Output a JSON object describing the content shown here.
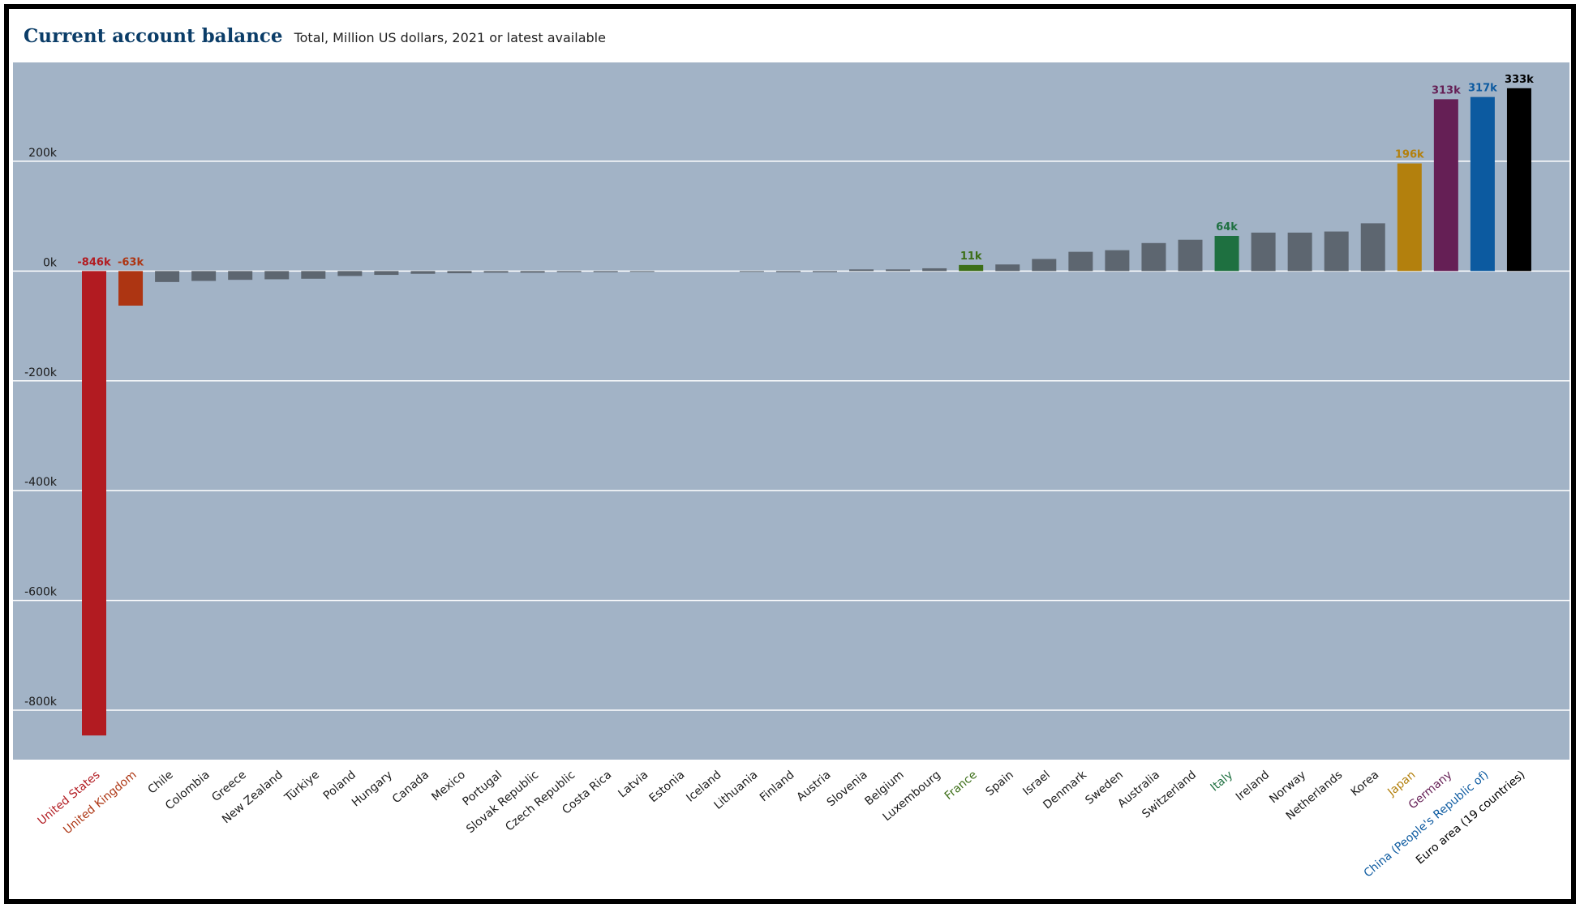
{
  "header": {
    "title": "Current account balance",
    "subtitle": "Total, Million US dollars, 2021 or latest available"
  },
  "chart_data": {
    "type": "bar",
    "title": "Current account balance",
    "subtitle": "Total, Million US dollars, 2021 or latest available",
    "xlabel": "",
    "ylabel": "",
    "ylim": [
      -890,
      380
    ],
    "yticks": [
      200,
      0,
      -200,
      -400,
      -600,
      -800
    ],
    "ytick_labels": [
      "200k",
      "0k",
      "-200k",
      "-400k",
      "-600k",
      "-800k"
    ],
    "grid": true,
    "default_color": "#5d6670",
    "background": "#a2b3c6",
    "categories": [
      "United States",
      "United Kingdom",
      "Chile",
      "Colombia",
      "Greece",
      "New Zealand",
      "Türkiye",
      "Poland",
      "Hungary",
      "Canada",
      "Mexico",
      "Portugal",
      "Slovak Republic",
      "Czech Republic",
      "Costa Rica",
      "Latvia",
      "Estonia",
      "Iceland",
      "Lithuania",
      "Finland",
      "Austria",
      "Slovenia",
      "Belgium",
      "Luxembourg",
      "France",
      "Spain",
      "Israel",
      "Denmark",
      "Sweden",
      "Australia",
      "Switzerland",
      "Italy",
      "Ireland",
      "Norway",
      "Netherlands",
      "Korea",
      "Japan",
      "Germany",
      "China (People's Republic of)",
      "Euro area (19 countries)"
    ],
    "values": [
      -846,
      -63,
      -20,
      -18,
      -16,
      -15,
      -14,
      -9,
      -7,
      -5,
      -4,
      -3,
      -3,
      -2,
      -2,
      -1,
      0,
      0,
      -1,
      -2,
      -2,
      3,
      3,
      5,
      11,
      12,
      22,
      35,
      38,
      51,
      57,
      64,
      70,
      70,
      72,
      87,
      196,
      313,
      317,
      333
    ],
    "highlights": {
      "United States": {
        "color": "#b21b21",
        "label": "-846k"
      },
      "United Kingdom": {
        "color": "#ad3512",
        "label": "-63k"
      },
      "France": {
        "color": "#3c6e17",
        "label": "11k"
      },
      "Italy": {
        "color": "#1e7040",
        "label": "64k"
      },
      "Japan": {
        "color": "#b3800d",
        "label": "196k"
      },
      "Germany": {
        "color": "#651f55",
        "label": "313k"
      },
      "China (People's Republic of)": {
        "color": "#0c5aa0",
        "label": "317k"
      },
      "Euro area (19 countries)": {
        "color": "#000000",
        "label": "333k"
      }
    }
  }
}
